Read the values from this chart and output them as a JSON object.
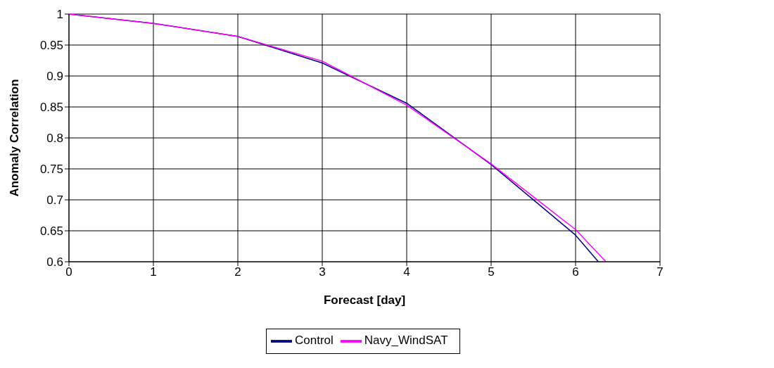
{
  "chart_data": {
    "type": "line",
    "xlabel": "Forecast [day]",
    "ylabel": "Anomaly Correlation",
    "xlim": [
      0,
      7
    ],
    "xticks": [
      0,
      1,
      2,
      3,
      4,
      5,
      6,
      7
    ],
    "ylim": [
      0.6,
      1
    ],
    "yticks": [
      {
        "value": 0.6,
        "label": "0.6"
      },
      0.65,
      0.7,
      0.75,
      0.8,
      0.85,
      0.9,
      0.95,
      {
        "value": 1,
        "label": "1"
      }
    ],
    "series": [
      {
        "name": "Control",
        "color": "#000080",
        "x": [
          0,
          1,
          2,
          3,
          4,
          5,
          6,
          6.27
        ],
        "values": [
          1,
          0.985,
          0.964,
          0.921,
          0.856,
          0.757,
          0.643,
          0.6
        ]
      },
      {
        "name": "Navy_WindSAT",
        "color": "#ff00ff",
        "x": [
          0,
          1,
          2,
          3,
          4,
          5,
          6,
          6.36
        ],
        "values": [
          1,
          0.985,
          0.964,
          0.924,
          0.853,
          0.758,
          0.652,
          0.6
        ]
      }
    ],
    "grid": true,
    "legend": "bottom",
    "marker": "none",
    "line_style": "solid"
  }
}
